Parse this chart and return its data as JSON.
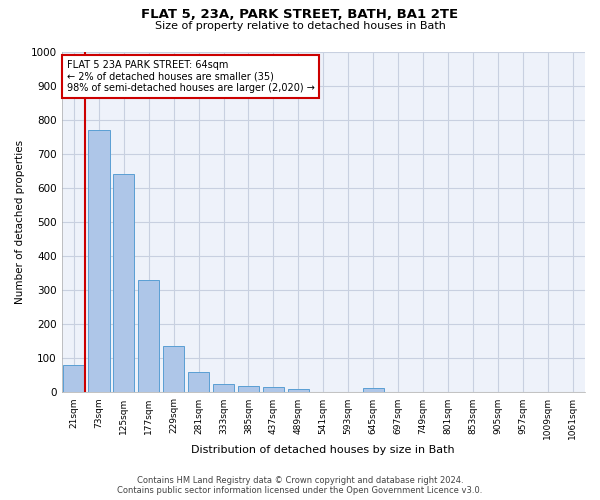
{
  "title": "FLAT 5, 23A, PARK STREET, BATH, BA1 2TE",
  "subtitle": "Size of property relative to detached houses in Bath",
  "xlabel": "Distribution of detached houses by size in Bath",
  "ylabel": "Number of detached properties",
  "categories": [
    "21sqm",
    "73sqm",
    "125sqm",
    "177sqm",
    "229sqm",
    "281sqm",
    "333sqm",
    "385sqm",
    "437sqm",
    "489sqm",
    "541sqm",
    "593sqm",
    "645sqm",
    "697sqm",
    "749sqm",
    "801sqm",
    "853sqm",
    "905sqm",
    "957sqm",
    "1009sqm",
    "1061sqm"
  ],
  "bar_heights": [
    80,
    770,
    640,
    330,
    135,
    60,
    25,
    20,
    15,
    10,
    0,
    0,
    12,
    0,
    0,
    0,
    0,
    0,
    0,
    0,
    0
  ],
  "bar_color": "#aec6e8",
  "bar_edge_color": "#5a9fd4",
  "property_line_color": "#cc0000",
  "annotation_line1": "FLAT 5 23A PARK STREET: 64sqm",
  "annotation_line2": "← 2% of detached houses are smaller (35)",
  "annotation_line3": "98% of semi-detached houses are larger (2,020) →",
  "annotation_box_color": "#cc0000",
  "ylim": [
    0,
    1000
  ],
  "yticks": [
    0,
    100,
    200,
    300,
    400,
    500,
    600,
    700,
    800,
    900,
    1000
  ],
  "footer1": "Contains HM Land Registry data © Crown copyright and database right 2024.",
  "footer2": "Contains public sector information licensed under the Open Government Licence v3.0.",
  "bg_color": "#eef2fa",
  "grid_color": "#c8d0e0"
}
